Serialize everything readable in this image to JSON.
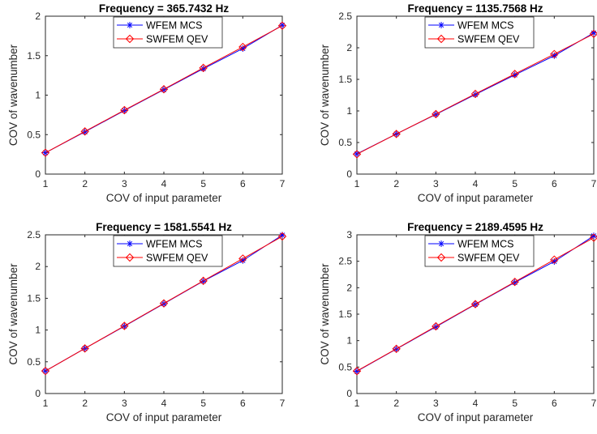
{
  "chart_data": [
    {
      "type": "line",
      "title": "Frequency = 365.7432 Hz",
      "xlabel": "COV of input parameter",
      "ylabel": "COV of wavenumber",
      "x": [
        1,
        2,
        3,
        4,
        5,
        6,
        7
      ],
      "xlim": [
        1,
        7
      ],
      "ylim": [
        0,
        2
      ],
      "xticks": [
        "1",
        "2",
        "3",
        "4",
        "5",
        "6",
        "7"
      ],
      "yticks": [
        "0",
        "0.5",
        "1",
        "1.5",
        "2"
      ],
      "legend_position": "top",
      "series": [
        {
          "name": "WFEM MCS",
          "color": "#0000ff",
          "marker": "asterisk",
          "values": [
            0.27,
            0.535,
            0.805,
            1.07,
            1.335,
            1.59,
            1.885
          ]
        },
        {
          "name": "SWFEM QEV",
          "color": "#ff0000",
          "marker": "diamond",
          "values": [
            0.27,
            0.54,
            0.81,
            1.075,
            1.345,
            1.61,
            1.88
          ]
        }
      ]
    },
    {
      "type": "line",
      "title": "Frequency = 1135.7568 Hz",
      "xlabel": "COV of input parameter",
      "ylabel": "COV of wavenumber",
      "x": [
        1,
        2,
        3,
        4,
        5,
        6,
        7
      ],
      "xlim": [
        1,
        7
      ],
      "ylim": [
        0,
        2.5
      ],
      "xticks": [
        "1",
        "2",
        "3",
        "4",
        "5",
        "6",
        "7"
      ],
      "yticks": [
        "0",
        "0.5",
        "1",
        "1.5",
        "2",
        "2.5"
      ],
      "legend_position": "top",
      "series": [
        {
          "name": "WFEM MCS",
          "color": "#0000ff",
          "marker": "asterisk",
          "values": [
            0.32,
            0.635,
            0.945,
            1.26,
            1.57,
            1.875,
            2.235
          ]
        },
        {
          "name": "SWFEM QEV",
          "color": "#ff0000",
          "marker": "diamond",
          "values": [
            0.315,
            0.635,
            0.95,
            1.27,
            1.585,
            1.9,
            2.22
          ]
        }
      ]
    },
    {
      "type": "line",
      "title": "Frequency = 1581.5541 Hz",
      "xlabel": "COV of input parameter",
      "ylabel": "COV of wavenumber",
      "x": [
        1,
        2,
        3,
        4,
        5,
        6,
        7
      ],
      "xlim": [
        1,
        7
      ],
      "ylim": [
        0,
        2.5
      ],
      "xticks": [
        "1",
        "2",
        "3",
        "4",
        "5",
        "6",
        "7"
      ],
      "yticks": [
        "0",
        "0.5",
        "1",
        "1.5",
        "2",
        "2.5"
      ],
      "legend_position": "top",
      "series": [
        {
          "name": "WFEM MCS",
          "color": "#0000ff",
          "marker": "asterisk",
          "values": [
            0.355,
            0.71,
            1.06,
            1.415,
            1.77,
            2.095,
            2.495
          ]
        },
        {
          "name": "SWFEM QEV",
          "color": "#ff0000",
          "marker": "diamond",
          "values": [
            0.355,
            0.71,
            1.065,
            1.42,
            1.775,
            2.125,
            2.475
          ]
        }
      ]
    },
    {
      "type": "line",
      "title": "Frequency = 2189.4595 Hz",
      "xlabel": "COV of input parameter",
      "ylabel": "COV of wavenumber",
      "x": [
        1,
        2,
        3,
        4,
        5,
        6,
        7
      ],
      "xlim": [
        1,
        7
      ],
      "ylim": [
        0,
        3
      ],
      "xticks": [
        "1",
        "2",
        "3",
        "4",
        "5",
        "6",
        "7"
      ],
      "yticks": [
        "0",
        "0.5",
        "1",
        "1.5",
        "2",
        "2.5",
        "3"
      ],
      "legend_position": "top",
      "series": [
        {
          "name": "WFEM MCS",
          "color": "#0000ff",
          "marker": "asterisk",
          "values": [
            0.42,
            0.84,
            1.26,
            1.685,
            2.1,
            2.495,
            2.98
          ]
        },
        {
          "name": "SWFEM QEV",
          "color": "#ff0000",
          "marker": "diamond",
          "values": [
            0.425,
            0.845,
            1.27,
            1.69,
            2.11,
            2.53,
            2.945
          ]
        }
      ]
    }
  ]
}
